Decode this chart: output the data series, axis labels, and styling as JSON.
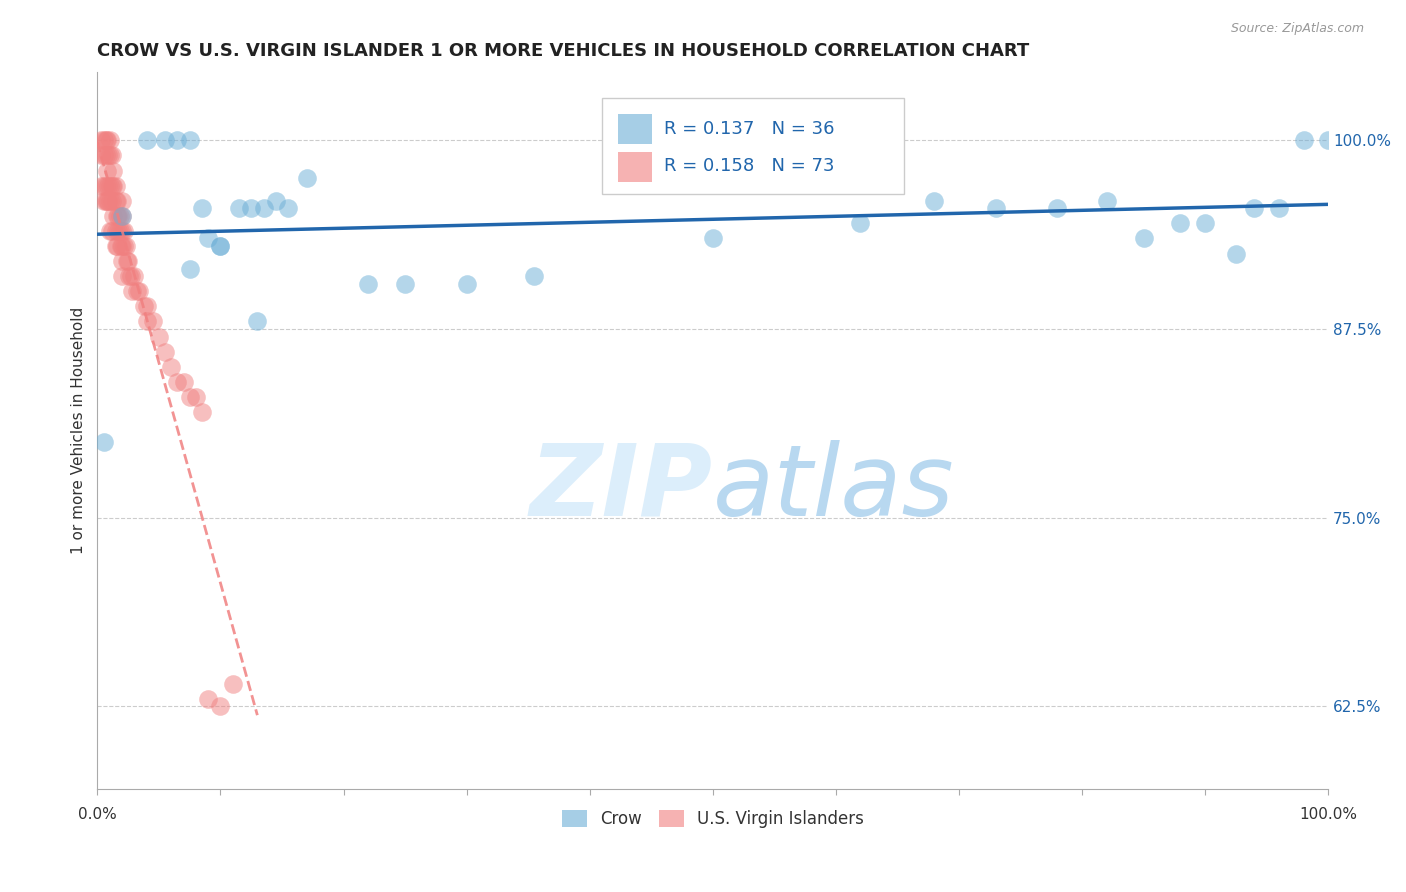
{
  "title": "CROW VS U.S. VIRGIN ISLANDER 1 OR MORE VEHICLES IN HOUSEHOLD CORRELATION CHART",
  "source": "Source: ZipAtlas.com",
  "ylabel": "1 or more Vehicles in Household",
  "xlim": [
    0.0,
    1.0
  ],
  "ylim": [
    0.57,
    1.045
  ],
  "yticks": [
    0.625,
    0.75,
    0.875,
    1.0
  ],
  "ytick_labels": [
    "62.5%",
    "75.0%",
    "87.5%",
    "100.0%"
  ],
  "crow_color": "#6baed6",
  "usvi_color": "#f08080",
  "crow_R": 0.137,
  "crow_N": 36,
  "usvi_R": 0.158,
  "usvi_N": 73,
  "crow_scatter_x": [
    0.005,
    0.02,
    0.04,
    0.055,
    0.065,
    0.075,
    0.085,
    0.1,
    0.115,
    0.125,
    0.135,
    0.145,
    0.155,
    0.17,
    0.22,
    0.25,
    0.3,
    0.355,
    0.5,
    0.62,
    0.68,
    0.73,
    0.78,
    0.82,
    0.85,
    0.88,
    0.9,
    0.925,
    0.94,
    0.96,
    0.98,
    1.0,
    0.075,
    0.09,
    0.1,
    0.13
  ],
  "crow_scatter_y": [
    0.8,
    0.95,
    1.0,
    1.0,
    1.0,
    1.0,
    0.955,
    0.93,
    0.955,
    0.955,
    0.955,
    0.96,
    0.955,
    0.975,
    0.905,
    0.905,
    0.905,
    0.91,
    0.935,
    0.945,
    0.96,
    0.955,
    0.955,
    0.96,
    0.935,
    0.945,
    0.945,
    0.925,
    0.955,
    0.955,
    1.0,
    1.0,
    0.915,
    0.935,
    0.93,
    0.88
  ],
  "usvi_scatter_x": [
    0.003,
    0.003,
    0.003,
    0.005,
    0.005,
    0.005,
    0.005,
    0.007,
    0.007,
    0.007,
    0.007,
    0.008,
    0.008,
    0.008,
    0.009,
    0.009,
    0.009,
    0.01,
    0.01,
    0.01,
    0.01,
    0.01,
    0.012,
    0.012,
    0.012,
    0.012,
    0.013,
    0.013,
    0.013,
    0.015,
    0.015,
    0.015,
    0.015,
    0.016,
    0.016,
    0.016,
    0.017,
    0.017,
    0.018,
    0.018,
    0.019,
    0.02,
    0.02,
    0.02,
    0.02,
    0.02,
    0.02,
    0.022,
    0.022,
    0.023,
    0.024,
    0.025,
    0.026,
    0.027,
    0.028,
    0.03,
    0.032,
    0.034,
    0.038,
    0.04,
    0.04,
    0.045,
    0.05,
    0.055,
    0.06,
    0.065,
    0.07,
    0.075,
    0.08,
    0.085,
    0.09,
    0.1,
    0.11
  ],
  "usvi_scatter_y": [
    1.0,
    0.99,
    0.97,
    1.0,
    0.99,
    0.97,
    0.96,
    1.0,
    0.99,
    0.97,
    0.96,
    1.0,
    0.98,
    0.96,
    0.99,
    0.97,
    0.96,
    1.0,
    0.99,
    0.97,
    0.96,
    0.94,
    0.99,
    0.97,
    0.96,
    0.94,
    0.98,
    0.97,
    0.95,
    0.97,
    0.96,
    0.94,
    0.93,
    0.96,
    0.95,
    0.93,
    0.95,
    0.94,
    0.95,
    0.94,
    0.93,
    0.96,
    0.95,
    0.94,
    0.93,
    0.92,
    0.91,
    0.94,
    0.93,
    0.93,
    0.92,
    0.92,
    0.91,
    0.91,
    0.9,
    0.91,
    0.9,
    0.9,
    0.89,
    0.89,
    0.88,
    0.88,
    0.87,
    0.86,
    0.85,
    0.84,
    0.84,
    0.83,
    0.83,
    0.82,
    0.63,
    0.625,
    0.64
  ],
  "background_color": "#ffffff",
  "grid_color": "#cccccc",
  "title_fontsize": 13,
  "axis_label_fontsize": 11,
  "tick_fontsize": 11,
  "legend_fontsize": 13,
  "watermark_color": "#dceefb"
}
